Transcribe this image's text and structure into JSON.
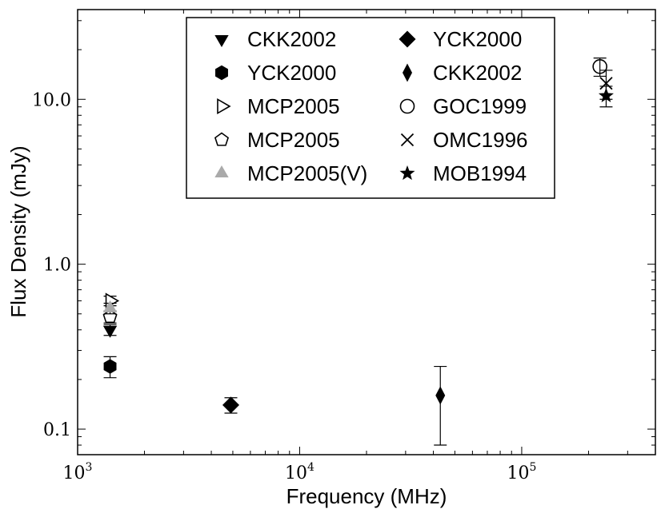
{
  "chart_data": {
    "type": "scatter",
    "xlabel": "Frequency (MHz)",
    "ylabel": "Flux Density (mJy)",
    "xscale": "log",
    "yscale": "log",
    "xlim": [
      1000,
      400000
    ],
    "ylim": [
      0.07,
      35
    ],
    "x_tick_labels": [
      {
        "value": 1000,
        "base": "10",
        "exp": "3"
      },
      {
        "value": 10000,
        "base": "10",
        "exp": "4"
      },
      {
        "value": 100000,
        "base": "10",
        "exp": "5"
      }
    ],
    "y_tick_labels": [
      {
        "value": 0.1,
        "label": "0.1"
      },
      {
        "value": 1.0,
        "label": "1.0"
      },
      {
        "value": 10.0,
        "label": "10.0"
      }
    ],
    "legend_position": "top-center",
    "grid": false,
    "series": [
      {
        "name": "CKK2002",
        "marker": "triangle-down",
        "color": "#000000",
        "points": [
          {
            "x": 1400,
            "y": 0.4,
            "err": 0.03
          }
        ]
      },
      {
        "name": "YCK2000",
        "marker": "hexagon",
        "color": "#000000",
        "points": [
          {
            "x": 1400,
            "y": 0.24,
            "err": 0.035
          }
        ]
      },
      {
        "name": "MCP2005",
        "marker": "triangle-right-open",
        "color": "#000000",
        "points": [
          {
            "x": 1400,
            "y": 0.6,
            "err": 0.04
          }
        ]
      },
      {
        "name": "MCP2005",
        "marker": "pentagon-open",
        "color": "#000000",
        "points": [
          {
            "x": 1400,
            "y": 0.48,
            "err": 0.04
          }
        ]
      },
      {
        "name": "MCP2005(V)",
        "marker": "triangle-up",
        "color": "#aaaaaa",
        "points": [
          {
            "x": 1400,
            "y": 0.54,
            "err": 0.04
          }
        ]
      },
      {
        "name": "YCK2000",
        "marker": "diamond",
        "color": "#000000",
        "points": [
          {
            "x": 4900,
            "y": 0.14,
            "err": 0.015
          }
        ]
      },
      {
        "name": "CKK2002",
        "marker": "thin-diamond",
        "color": "#000000",
        "points": [
          {
            "x": 43000,
            "y": 0.16,
            "err": 0.08
          }
        ]
      },
      {
        "name": "GOC1999",
        "marker": "circle-open",
        "color": "#000000",
        "points": [
          {
            "x": 225000,
            "y": 15.8,
            "err": 2.0
          }
        ]
      },
      {
        "name": "OMC1996",
        "marker": "x",
        "color": "#000000",
        "points": [
          {
            "x": 240000,
            "y": 12.5,
            "err": 2.5
          }
        ]
      },
      {
        "name": "MOB1994",
        "marker": "star",
        "color": "#000000",
        "points": [
          {
            "x": 240000,
            "y": 10.5,
            "err": 1.5
          }
        ]
      }
    ]
  }
}
